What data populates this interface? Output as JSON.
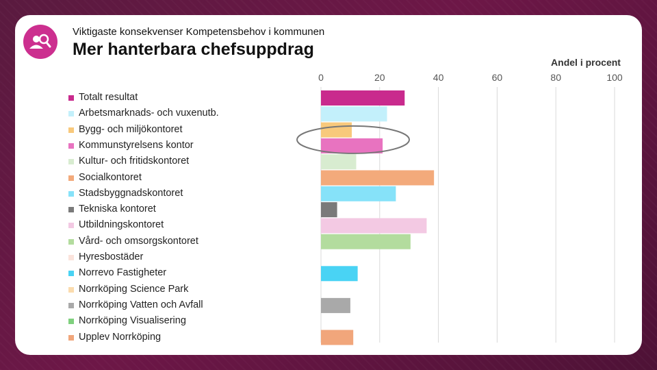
{
  "slide": {
    "subtitle": "Viktigaste konsekvenser Kompetensbehov i kommunen",
    "title": "Mer hanterbara chefsuppdrag",
    "logo_icon": "person-search-icon"
  },
  "chart_data": {
    "type": "bar",
    "orientation": "horizontal",
    "title": "Mer hanterbara chefsuppdrag",
    "xlabel": "Andel i procent",
    "ylabel": "",
    "xlim": [
      0,
      100
    ],
    "xticks": [
      "0",
      "20",
      "40",
      "60",
      "80",
      "100"
    ],
    "grid": true,
    "x_axis_position": "top",
    "legend_position": "left",
    "highlighted_category": "Kommunstyrelsens kontor",
    "categories": [
      "Totalt resultat",
      "Arbetsmarknads- och vuxenutb.",
      "Bygg- och miljökontoret",
      "Kommunstyrelsens kontor",
      "Kultur- och fritidskontoret",
      "Socialkontoret",
      "Stadsbyggnadskontoret",
      "Tekniska kontoret",
      "Utbildningskontoret",
      "Vård- och omsorgskontoret",
      "Hyresbostäder",
      "Norrevo Fastigheter",
      "Norrköping Science Park",
      "Norrköping Vatten och Avfall",
      "Norrköping Visualisering",
      "Upplev Norrköping"
    ],
    "values": [
      28.5,
      22.5,
      10.5,
      21,
      12,
      38.5,
      25.5,
      5.5,
      36,
      30.5,
      0,
      12.5,
      0,
      10,
      0,
      11
    ],
    "colors": [
      "#c92a8d",
      "#c3f0fb",
      "#f8c97c",
      "#e873c0",
      "#d8ecd0",
      "#f3aa7b",
      "#86e2f9",
      "#7a7a7a",
      "#f3c9e3",
      "#b3dc9e",
      "#fbe3dc",
      "#49d3f4",
      "#fbdcae",
      "#a9a9a9",
      "#7fd07e",
      "#f1a67b"
    ]
  }
}
